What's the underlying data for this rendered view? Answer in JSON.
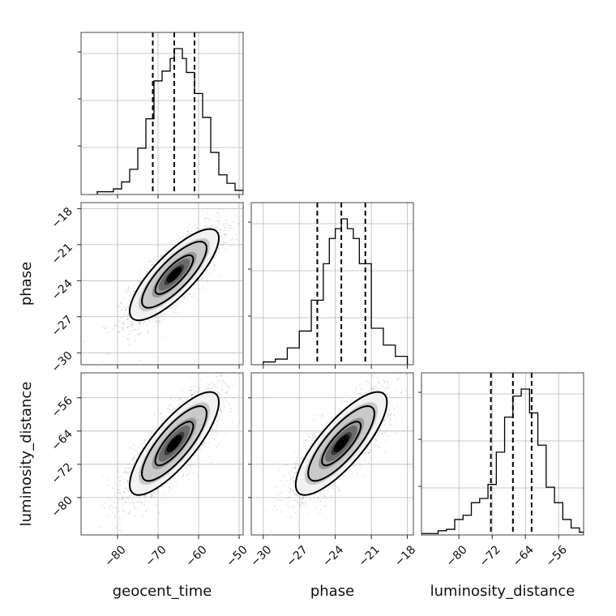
{
  "chart_data": {
    "type": "corner",
    "parameters": [
      "geocent_time",
      "phase",
      "luminosity_distance"
    ],
    "ranges": {
      "geocent_time": [
        -89,
        -49
      ],
      "phase": [
        -31,
        -17.5
      ],
      "luminosity_distance": [
        -89,
        -50
      ]
    },
    "ticks": {
      "geocent_time": [
        -80,
        -70,
        -60,
        -50
      ],
      "phase": [
        -30,
        -27,
        -24,
        -21,
        -18
      ],
      "luminosity_distance": [
        -80,
        -72,
        -64,
        -56
      ]
    },
    "tick_labels": {
      "geocent_time": [
        "−80",
        "−70",
        "−60",
        "−50"
      ],
      "phase": [
        "−30",
        "−27",
        "−24",
        "−21",
        "−18"
      ],
      "luminosity_distance": [
        "−80",
        "−72",
        "−64",
        "−56"
      ]
    },
    "axis_labels": {
      "x": [
        "geocent_time",
        "phase",
        "luminosity_distance"
      ],
      "y": [
        "phase",
        "luminosity_distance"
      ]
    },
    "histograms": {
      "geocent_time": {
        "edges": [
          -85,
          -83,
          -81,
          -79,
          -77,
          -75,
          -73,
          -71,
          -69,
          -67,
          -66,
          -65,
          -64,
          -63,
          -61,
          -59,
          -57,
          -55,
          -53,
          -51,
          -49
        ],
        "counts": [
          2,
          2,
          4,
          9,
          18,
          33,
          54,
          81,
          88,
          97,
          104,
          104,
          97,
          87,
          72,
          55,
          30,
          14,
          8,
          3
        ]
      },
      "phase": {
        "edges": [
          -30,
          -29,
          -28,
          -27,
          -26,
          -25,
          -24.5,
          -24,
          -23.5,
          -23,
          -22.5,
          -22,
          -21,
          -20,
          -19,
          -18
        ],
        "counts": [
          2,
          4,
          12,
          24,
          46,
          72,
          90,
          97,
          104,
          97,
          90,
          72,
          26,
          14,
          6
        ]
      },
      "luminosity_distance": {
        "edges": [
          -89,
          -85,
          -83,
          -81,
          -79,
          -77,
          -75,
          -73,
          -71,
          -69,
          -67,
          -65,
          -63,
          -61,
          -59,
          -57,
          -55,
          -53,
          -51,
          -50
        ],
        "counts": [
          1,
          3,
          4,
          11,
          14,
          23,
          26,
          36,
          59,
          84,
          99,
          104,
          87,
          64,
          34,
          23,
          11,
          5,
          2
        ]
      }
    },
    "quantiles": {
      "geocent_time": [
        -71.3,
        -66.0,
        -61.0
      ],
      "phase": [
        -25.5,
        -23.5,
        -21.5
      ],
      "luminosity_distance": [
        -72.3,
        -67.0,
        -62.5
      ]
    },
    "joint": [
      {
        "x": "geocent_time",
        "y": "phase",
        "center": [
          -66.0,
          -23.5
        ],
        "sigma": [
          5.5,
          1.9
        ],
        "rho": 0.8
      },
      {
        "x": "geocent_time",
        "y": "luminosity_distance",
        "center": [
          -66.0,
          -67.0
        ],
        "sigma": [
          5.5,
          6.2
        ],
        "rho": 0.8
      },
      {
        "x": "phase",
        "y": "luminosity_distance",
        "center": [
          -23.5,
          -67.0
        ],
        "sigma": [
          1.9,
          6.2
        ],
        "rho": 0.8
      }
    ]
  }
}
